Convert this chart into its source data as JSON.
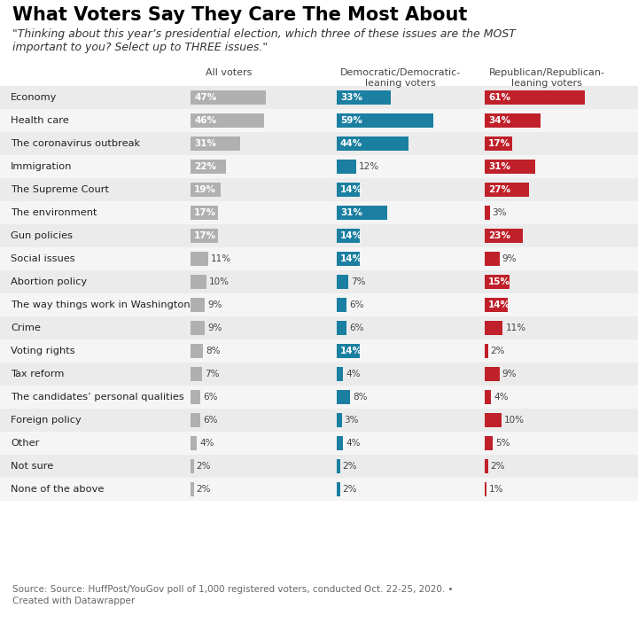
{
  "title": "What Voters Say They Care The Most About",
  "subtitle": "\"Thinking about this year’s presidential election, which three of these issues are the MOST\nimportant to you? Select up to THREE issues.\"",
  "col_headers": [
    "All voters",
    "Democratic/Democratic-\nleaning voters",
    "Republican/Republican-\nleaning voters"
  ],
  "categories": [
    "Economy",
    "Health care",
    "The coronavirus outbreak",
    "Immigration",
    "The Supreme Court",
    "The environment",
    "Gun policies",
    "Social issues",
    "Abortion policy",
    "The way things work in Washington",
    "Crime",
    "Voting rights",
    "Tax reform",
    "The candidates’ personal qualities",
    "Foreign policy",
    "Other",
    "Not sure",
    "None of the above"
  ],
  "all_voters": [
    47,
    46,
    31,
    22,
    19,
    17,
    17,
    11,
    10,
    9,
    9,
    8,
    7,
    6,
    6,
    4,
    2,
    2
  ],
  "dem_voters": [
    33,
    59,
    44,
    12,
    14,
    31,
    14,
    14,
    7,
    6,
    6,
    14,
    4,
    8,
    3,
    4,
    2,
    2
  ],
  "rep_voters": [
    61,
    34,
    17,
    31,
    27,
    3,
    23,
    9,
    15,
    14,
    11,
    2,
    9,
    4,
    10,
    5,
    2,
    1
  ],
  "color_all": "#b0b0b0",
  "color_dem": "#1a7fa0",
  "color_rep": "#c0202a",
  "row_bg_even": "#ebebeb",
  "row_bg_odd": "#f5f5f5",
  "source_text": "Source: Source: HuffPost/YouGov poll of 1,000 registered voters, conducted Oct. 22-25, 2020. •\nCreated with Datawrapper"
}
